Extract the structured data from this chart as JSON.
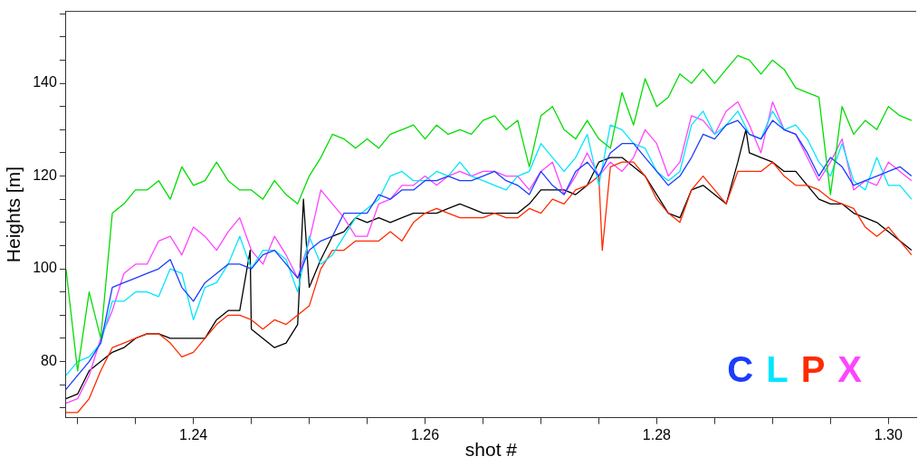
{
  "chart_data": {
    "type": "line",
    "xlabel": "shot #",
    "ylabel": "Heights [m]",
    "xlim": [
      1.229,
      1.3024
    ],
    "ylim": [
      67.9,
      155.5
    ],
    "xticks": [
      {
        "value": 1.23,
        "label": null
      },
      {
        "value": 1.235,
        "label": null
      },
      {
        "value": 1.24,
        "label": "1.24"
      },
      {
        "value": 1.245,
        "label": null
      },
      {
        "value": 1.25,
        "label": null
      },
      {
        "value": 1.255,
        "label": null
      },
      {
        "value": 1.26,
        "label": "1.26"
      },
      {
        "value": 1.265,
        "label": null
      },
      {
        "value": 1.27,
        "label": null
      },
      {
        "value": 1.275,
        "label": null
      },
      {
        "value": 1.28,
        "label": "1.28"
      },
      {
        "value": 1.285,
        "label": null
      },
      {
        "value": 1.29,
        "label": null
      },
      {
        "value": 1.295,
        "label": null
      },
      {
        "value": 1.3,
        "label": "1.30"
      }
    ],
    "yticks": [
      {
        "value": 70,
        "label": null
      },
      {
        "value": 75,
        "label": null
      },
      80,
      {
        "value": 85,
        "label": null
      },
      {
        "value": 90,
        "label": null
      },
      {
        "value": 95,
        "label": null
      },
      100,
      {
        "value": 105,
        "label": null
      },
      {
        "value": 110,
        "label": null
      },
      {
        "value": 115,
        "label": null
      },
      120,
      {
        "value": 125,
        "label": null
      },
      {
        "value": 130,
        "label": null
      },
      {
        "value": 135,
        "label": null
      },
      140,
      {
        "value": 145,
        "label": null
      },
      {
        "value": 150,
        "label": null
      },
      {
        "value": 155,
        "label": null
      }
    ],
    "grid": false,
    "marker": "none",
    "line_style": "solid",
    "legend": "bottom right",
    "x": [
      1.229,
      1.23,
      1.231,
      1.232,
      1.233,
      1.234,
      1.235,
      1.236,
      1.237,
      1.238,
      1.239,
      1.24,
      1.241,
      1.242,
      1.243,
      1.244,
      1.245,
      1.246,
      1.247,
      1.248,
      1.249,
      1.25,
      1.251,
      1.252,
      1.253,
      1.254,
      1.255,
      1.256,
      1.257,
      1.258,
      1.259,
      1.26,
      1.261,
      1.262,
      1.263,
      1.264,
      1.265,
      1.266,
      1.267,
      1.268,
      1.269,
      1.27,
      1.271,
      1.272,
      1.273,
      1.274,
      1.275,
      1.276,
      1.277,
      1.278,
      1.279,
      1.28,
      1.281,
      1.282,
      1.283,
      1.284,
      1.285,
      1.286,
      1.287,
      1.288,
      1.289,
      1.29,
      1.291,
      1.292,
      1.293,
      1.294,
      1.295,
      1.296,
      1.297,
      1.298,
      1.299,
      1.3,
      1.301,
      1.302
    ],
    "series": [
      {
        "color": "#00dd00",
        "values": [
          100,
          78,
          95,
          85,
          112,
          114,
          117,
          117,
          119,
          115,
          122,
          118,
          119,
          123,
          119,
          117,
          117,
          115,
          119,
          116,
          114,
          120,
          124,
          129,
          128,
          126,
          128,
          126,
          129,
          130,
          131,
          128,
          131,
          129,
          130,
          129,
          132,
          133,
          130,
          132,
          122,
          133,
          135,
          130,
          128,
          132,
          128,
          126,
          138,
          131,
          141,
          135,
          137,
          142,
          140,
          143,
          140,
          143,
          146,
          145,
          142,
          145,
          143,
          139,
          138,
          137,
          116,
          135,
          129,
          132,
          130,
          135,
          133,
          132
        ]
      },
      {
        "name": "C",
        "color": "#1a3cff",
        "values": [
          74,
          77,
          80,
          84,
          96,
          97,
          98,
          99,
          100,
          102,
          96,
          93,
          97,
          99,
          101,
          101,
          100,
          103,
          104,
          101,
          98,
          104,
          106,
          107,
          112,
          112,
          112,
          116,
          115,
          117,
          117,
          119,
          119,
          120,
          119,
          119,
          120,
          121,
          119,
          118,
          116,
          121,
          118,
          116,
          121,
          123,
          120,
          125,
          127,
          127,
          124,
          121,
          118,
          120,
          124,
          129,
          128,
          131,
          132,
          129,
          128,
          132,
          130,
          129,
          125,
          120,
          124,
          122,
          118,
          119,
          120,
          121,
          122,
          120
        ]
      },
      {
        "name": "L",
        "color": "#00e5ff",
        "values": [
          77,
          80,
          81,
          84,
          93,
          93,
          95,
          95,
          94,
          100,
          99,
          89,
          96,
          97,
          101,
          107,
          100,
          104,
          104,
          102,
          95,
          107,
          101,
          103,
          107,
          111,
          113,
          115,
          120,
          121,
          119,
          119,
          121,
          120,
          123,
          120,
          119,
          118,
          117,
          120,
          121,
          127,
          124,
          121,
          124,
          129,
          118,
          131,
          130,
          127,
          126,
          121,
          119,
          121,
          131,
          134,
          129,
          131,
          134,
          129,
          128,
          134,
          130,
          131,
          128,
          123,
          120,
          127,
          119,
          117,
          124,
          118,
          118,
          115
        ]
      },
      {
        "name": "P",
        "color": "#ff2a00",
        "x": [
          1.229,
          1.23,
          1.231,
          1.232,
          1.233,
          1.234,
          1.235,
          1.236,
          1.237,
          1.238,
          1.239,
          1.24,
          1.241,
          1.242,
          1.243,
          1.244,
          1.245,
          1.246,
          1.247,
          1.248,
          1.249,
          1.25,
          1.251,
          1.252,
          1.253,
          1.254,
          1.255,
          1.256,
          1.257,
          1.258,
          1.259,
          1.26,
          1.261,
          1.262,
          1.263,
          1.264,
          1.265,
          1.266,
          1.267,
          1.268,
          1.269,
          1.27,
          1.271,
          1.272,
          1.273,
          1.274,
          1.275,
          1.2753,
          1.276,
          1.277,
          1.278,
          1.279,
          1.28,
          1.281,
          1.282,
          1.283,
          1.284,
          1.285,
          1.286,
          1.287,
          1.288,
          1.289,
          1.29,
          1.291,
          1.292,
          1.293,
          1.294,
          1.295,
          1.296,
          1.297,
          1.298,
          1.299,
          1.3,
          1.301,
          1.302
        ],
        "values": [
          69,
          69,
          72,
          78,
          83,
          84,
          85,
          86,
          86,
          84,
          81,
          82,
          85,
          88,
          90,
          90,
          89,
          87,
          89,
          88,
          90,
          92,
          100,
          104,
          104,
          106,
          106,
          106,
          108,
          106,
          110,
          112,
          113,
          112,
          111,
          111,
          111,
          112,
          111,
          111,
          113,
          112,
          115,
          114,
          117,
          118,
          120,
          104,
          122,
          123,
          123,
          120,
          115,
          112,
          110,
          117,
          120,
          117,
          114,
          121,
          121,
          121,
          123,
          120,
          118,
          118,
          117,
          115,
          114,
          113,
          109,
          107,
          109,
          106,
          103
        ]
      },
      {
        "name": "X",
        "color": "#ff44ff",
        "values": [
          71,
          72,
          77,
          85,
          91,
          99,
          101,
          101,
          106,
          107,
          103,
          109,
          107,
          104,
          108,
          111,
          104,
          101,
          107,
          103,
          98,
          106,
          117,
          114,
          111,
          107,
          107,
          114,
          115,
          118,
          118,
          120,
          118,
          120,
          121,
          120,
          121,
          121,
          120,
          120,
          117,
          121,
          123,
          116,
          120,
          125,
          120,
          123,
          121,
          124,
          130,
          127,
          120,
          123,
          133,
          132,
          129,
          134,
          136,
          131,
          125,
          136,
          130,
          129,
          124,
          119,
          123,
          128,
          117,
          119,
          118,
          123,
          121,
          119
        ]
      },
      {
        "color": "#000000",
        "x": [
          1.229,
          1.23,
          1.231,
          1.232,
          1.233,
          1.234,
          1.235,
          1.236,
          1.237,
          1.238,
          1.239,
          1.24,
          1.241,
          1.242,
          1.243,
          1.244,
          1.2449,
          1.245,
          1.246,
          1.247,
          1.248,
          1.249,
          1.2495,
          1.25,
          1.251,
          1.252,
          1.253,
          1.254,
          1.255,
          1.256,
          1.257,
          1.258,
          1.259,
          1.26,
          1.261,
          1.262,
          1.263,
          1.264,
          1.265,
          1.266,
          1.267,
          1.268,
          1.269,
          1.27,
          1.271,
          1.272,
          1.273,
          1.274,
          1.275,
          1.276,
          1.277,
          1.278,
          1.279,
          1.28,
          1.281,
          1.282,
          1.283,
          1.284,
          1.285,
          1.286,
          1.287,
          1.2877,
          1.288,
          1.289,
          1.29,
          1.291,
          1.292,
          1.293,
          1.294,
          1.295,
          1.296,
          1.297,
          1.298,
          1.299,
          1.3,
          1.301,
          1.302
        ],
        "values": [
          72,
          73,
          78,
          80,
          82,
          83,
          85,
          86,
          86,
          85,
          85,
          85,
          85,
          89,
          91,
          91,
          104,
          87,
          85,
          83,
          84,
          88,
          115,
          96,
          102,
          107,
          108,
          111,
          110,
          111,
          110,
          111,
          112,
          112,
          112,
          113,
          114,
          113,
          112,
          112,
          112,
          112,
          114,
          117,
          117,
          117,
          116,
          118,
          123,
          124,
          124,
          122,
          120,
          116,
          112,
          111,
          117,
          118,
          116,
          114,
          123,
          130,
          125,
          124,
          123,
          121,
          121,
          118,
          115,
          114,
          114,
          112,
          111,
          110,
          108,
          106,
          104
        ]
      }
    ]
  }
}
